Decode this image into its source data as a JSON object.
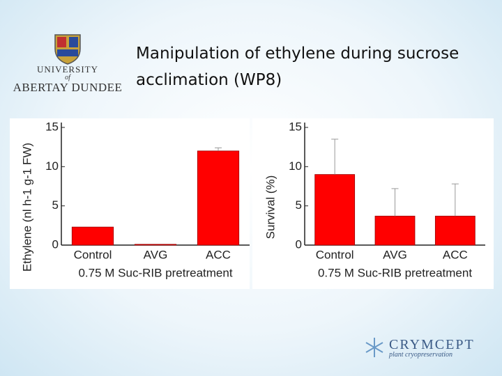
{
  "slide_title": "Manipulation of ethylene during sucrose acclimation (WP8)",
  "logo_university": {
    "line1": "UNIVERSITY",
    "line2": "of",
    "line3": "ABERTAY DUNDEE"
  },
  "logo_company": {
    "name": "CRYMCEPT",
    "tagline": "plant cryopreservation"
  },
  "chart_data": [
    {
      "type": "bar",
      "ylabel": "Ethylene (nl h-1 g-1 FW)",
      "xlabel": "0.75 M Suc-RIB pretreatment",
      "categories": [
        "Control",
        "AVG",
        "ACC"
      ],
      "values": [
        2.3,
        0.1,
        12.0
      ],
      "errors": [
        null,
        null,
        0.4
      ],
      "color": "#ff0000",
      "ylim": [
        0,
        15
      ],
      "yticks": [
        0,
        5,
        10,
        15
      ]
    },
    {
      "type": "bar",
      "ylabel": "Survival (%)",
      "xlabel": "0.75 M Suc-RIB pretreatment",
      "categories": [
        "Control",
        "AVG",
        "ACC"
      ],
      "values": [
        9.0,
        3.7,
        3.7
      ],
      "errors": [
        4.5,
        3.5,
        4.1
      ],
      "color": "#ff0000",
      "ylim": [
        0,
        15
      ],
      "yticks": [
        0,
        5,
        10,
        15
      ]
    }
  ]
}
